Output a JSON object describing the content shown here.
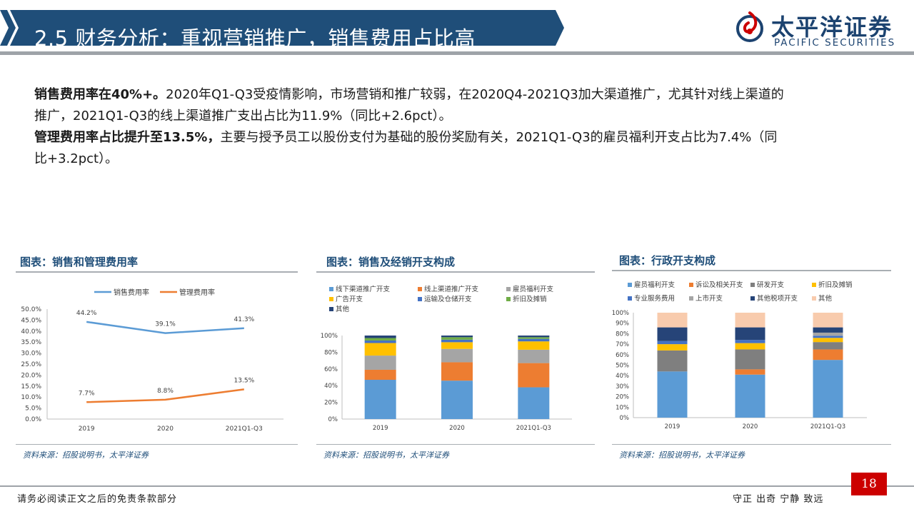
{
  "header": {
    "title": "2.5 财务分析：重视营销推广，销售费用占比高",
    "logo_cn": "太平洋证券",
    "logo_en": "PACIFIC SECURITIES",
    "colors": {
      "banner": "#1f4e79",
      "logo": "#1c4370",
      "accent_red": "#cc0000"
    }
  },
  "body": {
    "p1_bold": "销售费用率在40%+。",
    "p1_text": "2020年Q1-Q3受疫情影响，市场营销和推广较弱，在2020Q4-2021Q3加大渠道推广，尤其针对线上渠道的推广，2021Q1-Q3的线上渠道推广支出占比为11.9%（同比+2.6pct）。",
    "p2_bold": "管理费用率占比提升至13.5%，",
    "p2_text": "主要与授予员工以股份支付为基础的股份奖励有关，2021Q1-Q3的雇员福利开支占比为7.4%（同比+3.2pct）。"
  },
  "panels": [
    {
      "title": "图表：销售和管理费用率",
      "source": "资料来源：招股说明书，太平洋证券"
    },
    {
      "title": "图表：销售及经销开支构成",
      "source": "资料来源：招股说明书，太平洋证券"
    },
    {
      "title": "图表：行政开支构成",
      "source": "资料来源：招股说明书，太平洋证券"
    }
  ],
  "chart_data": [
    {
      "type": "line",
      "categories": [
        "2019",
        "2020",
        "2021Q1-Q3"
      ],
      "series": [
        {
          "name": "销售费用率",
          "values": [
            44.2,
            39.1,
            41.3
          ],
          "labels": [
            "44.2%",
            "39.1%",
            "41.3%"
          ],
          "color": "#5b9bd5"
        },
        {
          "name": "管理费用率",
          "values": [
            7.7,
            8.8,
            13.5
          ],
          "labels": [
            "7.7%",
            "8.8%",
            "13.5%"
          ],
          "color": "#ed7d31"
        }
      ],
      "ylim": [
        0,
        50
      ],
      "yticks": [
        "0.0%",
        "5.0%",
        "10.0%",
        "15.0%",
        "20.0%",
        "25.0%",
        "30.0%",
        "35.0%",
        "40.0%",
        "45.0%",
        "50.0%"
      ],
      "legend": "top"
    },
    {
      "type": "bar",
      "stacked": true,
      "categories": [
        "2019",
        "2020",
        "2021Q1-Q3"
      ],
      "series": [
        {
          "name": "线下渠道推广开支",
          "values": [
            47,
            46,
            38
          ],
          "color": "#5b9bd5"
        },
        {
          "name": "线上渠道推广开支",
          "values": [
            12,
            22,
            29
          ],
          "color": "#ed7d31"
        },
        {
          "name": "雇员福利开支",
          "values": [
            17,
            16,
            16
          ],
          "color": "#a5a5a5"
        },
        {
          "name": "广告开支",
          "values": [
            15,
            8,
            10
          ],
          "color": "#ffc000"
        },
        {
          "name": "运输及仓储开支",
          "values": [
            3,
            3,
            3
          ],
          "color": "#4472c4"
        },
        {
          "name": "折旧及摊销",
          "values": [
            3,
            3,
            2
          ],
          "color": "#70ad47"
        },
        {
          "name": "其他",
          "values": [
            3,
            2,
            2
          ],
          "color": "#264478"
        }
      ],
      "ylim": [
        0,
        100
      ],
      "yticks": [
        "0%",
        "20%",
        "40%",
        "60%",
        "80%",
        "100%"
      ],
      "legend": "top"
    },
    {
      "type": "bar",
      "stacked": true,
      "categories": [
        "2019",
        "2020",
        "2021Q1-Q3"
      ],
      "series": [
        {
          "name": "雇员福利开支",
          "values": [
            44,
            41,
            55
          ],
          "color": "#5b9bd5"
        },
        {
          "name": "诉讼及相关开支",
          "values": [
            0,
            5,
            10
          ],
          "color": "#ed7d31"
        },
        {
          "name": "研发开支",
          "values": [
            20,
            19,
            7
          ],
          "color": "#7f7f7f"
        },
        {
          "name": "折旧及摊销",
          "values": [
            6,
            6,
            4
          ],
          "color": "#ffc000"
        },
        {
          "name": "专业服务费用",
          "values": [
            3,
            3,
            2
          ],
          "color": "#4472c4"
        },
        {
          "name": "上市开支",
          "values": [
            0,
            0,
            3
          ],
          "color": "#a5a5a5"
        },
        {
          "name": "其他税项开支",
          "values": [
            13,
            12,
            5
          ],
          "color": "#264478"
        },
        {
          "name": "其他",
          "values": [
            14,
            14,
            14
          ],
          "color": "#f8cbad"
        }
      ],
      "ylim": [
        0,
        100
      ],
      "yticks": [
        "0%",
        "10%",
        "20%",
        "30%",
        "40%",
        "50%",
        "60%",
        "70%",
        "80%",
        "90%",
        "100%"
      ],
      "legend": "top"
    }
  ],
  "footer": {
    "left": "请务必阅读正文之后的免责条款部分",
    "right": "守正 出奇 宁静 致远",
    "page": "18"
  }
}
